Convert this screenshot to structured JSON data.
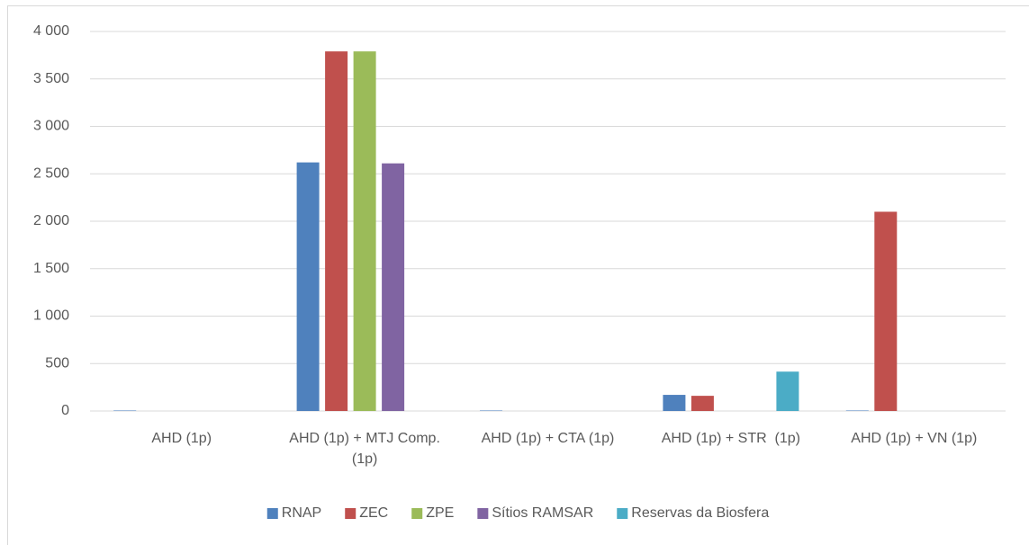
{
  "chart_data": {
    "type": "bar",
    "categories": [
      "AHD (1p)",
      "AHD (1p) + MTJ Comp. (1p)",
      "AHD (1p) + CTA (1p)",
      "AHD (1p) + STR  (1p)",
      "AHD (1p) + VN (1p)"
    ],
    "series": [
      {
        "name": "RNAP",
        "color": "#4f81bd",
        "values": [
          5,
          2620,
          5,
          170,
          5
        ]
      },
      {
        "name": "ZEC",
        "color": "#c0504d",
        "values": [
          0,
          3790,
          0,
          160,
          2100
        ]
      },
      {
        "name": "ZPE",
        "color": "#9bbb59",
        "values": [
          0,
          3790,
          0,
          0,
          0
        ]
      },
      {
        "name": "Sítios RAMSAR",
        "color": "#8064a2",
        "values": [
          0,
          2610,
          0,
          0,
          0
        ]
      },
      {
        "name": "Reservas da Biosfera",
        "color": "#4bacc6",
        "values": [
          0,
          0,
          0,
          415,
          0
        ]
      }
    ],
    "ylim": [
      0,
      4000
    ],
    "yticks": [
      0,
      500,
      {
        "value": 1000,
        "label": "1 000"
      },
      {
        "value": 1500,
        "label": "1 500"
      },
      {
        "value": 2000,
        "label": "2 000"
      },
      {
        "value": 2500,
        "label": "2 500"
      },
      {
        "value": 3000,
        "label": "3 000"
      },
      {
        "value": 3500,
        "label": "3 500"
      },
      {
        "value": 4000,
        "label": "4 000"
      }
    ],
    "grid": true,
    "legend": "bottom"
  }
}
